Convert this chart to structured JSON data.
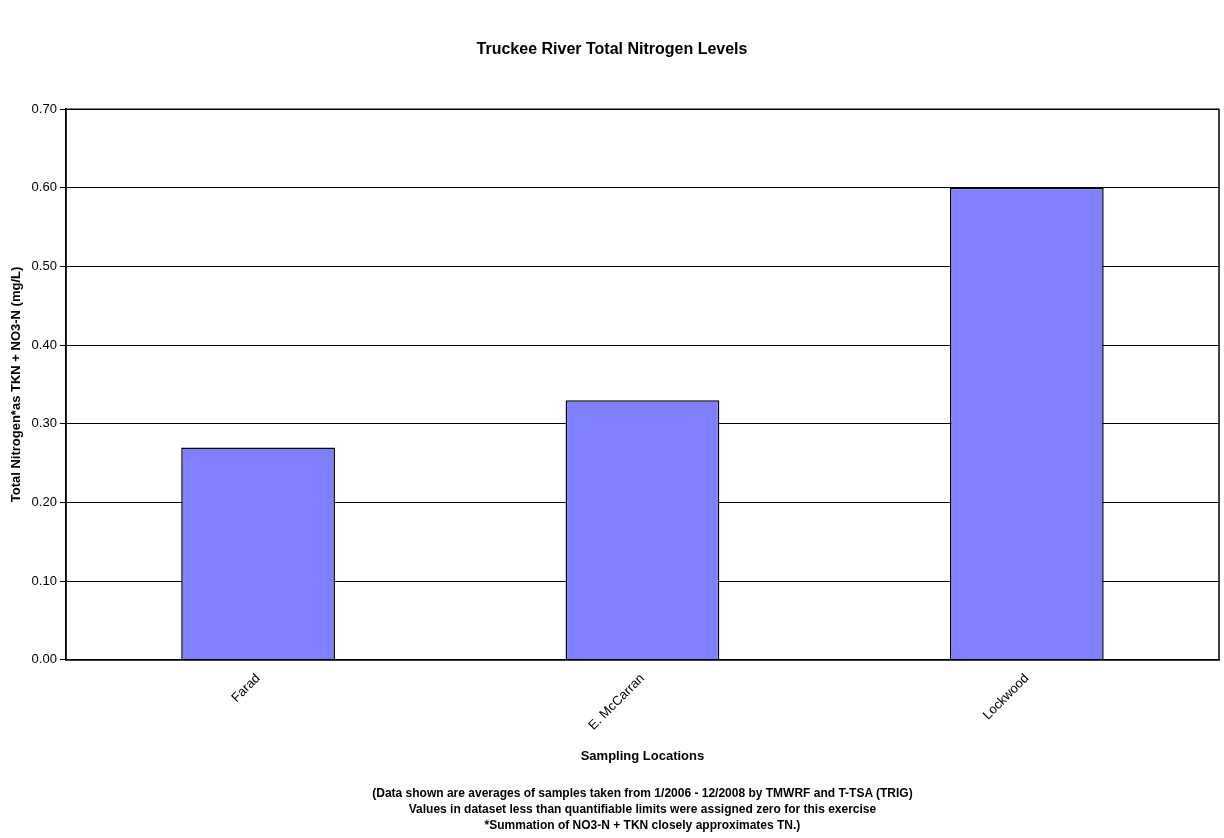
{
  "chart_data": {
    "type": "bar",
    "title": "Truckee River Total Nitrogen Levels",
    "xlabel": "Sampling Locations",
    "ylabel": "Total Nitrogen*as TKN + NO3-N (mg/L)",
    "categories": [
      "Farad",
      "E. McCarran",
      "Lockwood"
    ],
    "values": [
      0.27,
      0.33,
      0.6
    ],
    "color": "#8080ff",
    "ylim": [
      0,
      0.7
    ],
    "yticks": [
      {
        "value": 0,
        "label": "0.00"
      },
      {
        "value": 0.1,
        "label": "0.10"
      },
      {
        "value": 0.2,
        "label": "0.20"
      },
      {
        "value": 0.3,
        "label": "0.30"
      },
      {
        "value": 0.4,
        "label": "0.40"
      },
      {
        "value": 0.5,
        "label": "0.50"
      },
      {
        "value": 0.6,
        "label": "0.60"
      },
      {
        "value": 0.7,
        "label": "0.70"
      }
    ],
    "grid": "y",
    "legend": false,
    "annotations": [
      "(Data shown are averages of samples taken from 1/2006 - 12/2008 by TMWRF and T-TSA (TRIG)",
      "Values in dataset less than quantifiable limits were assigned zero for this exercise",
      "*Summation of NO3-N + TKN closely approximates TN.)"
    ]
  }
}
